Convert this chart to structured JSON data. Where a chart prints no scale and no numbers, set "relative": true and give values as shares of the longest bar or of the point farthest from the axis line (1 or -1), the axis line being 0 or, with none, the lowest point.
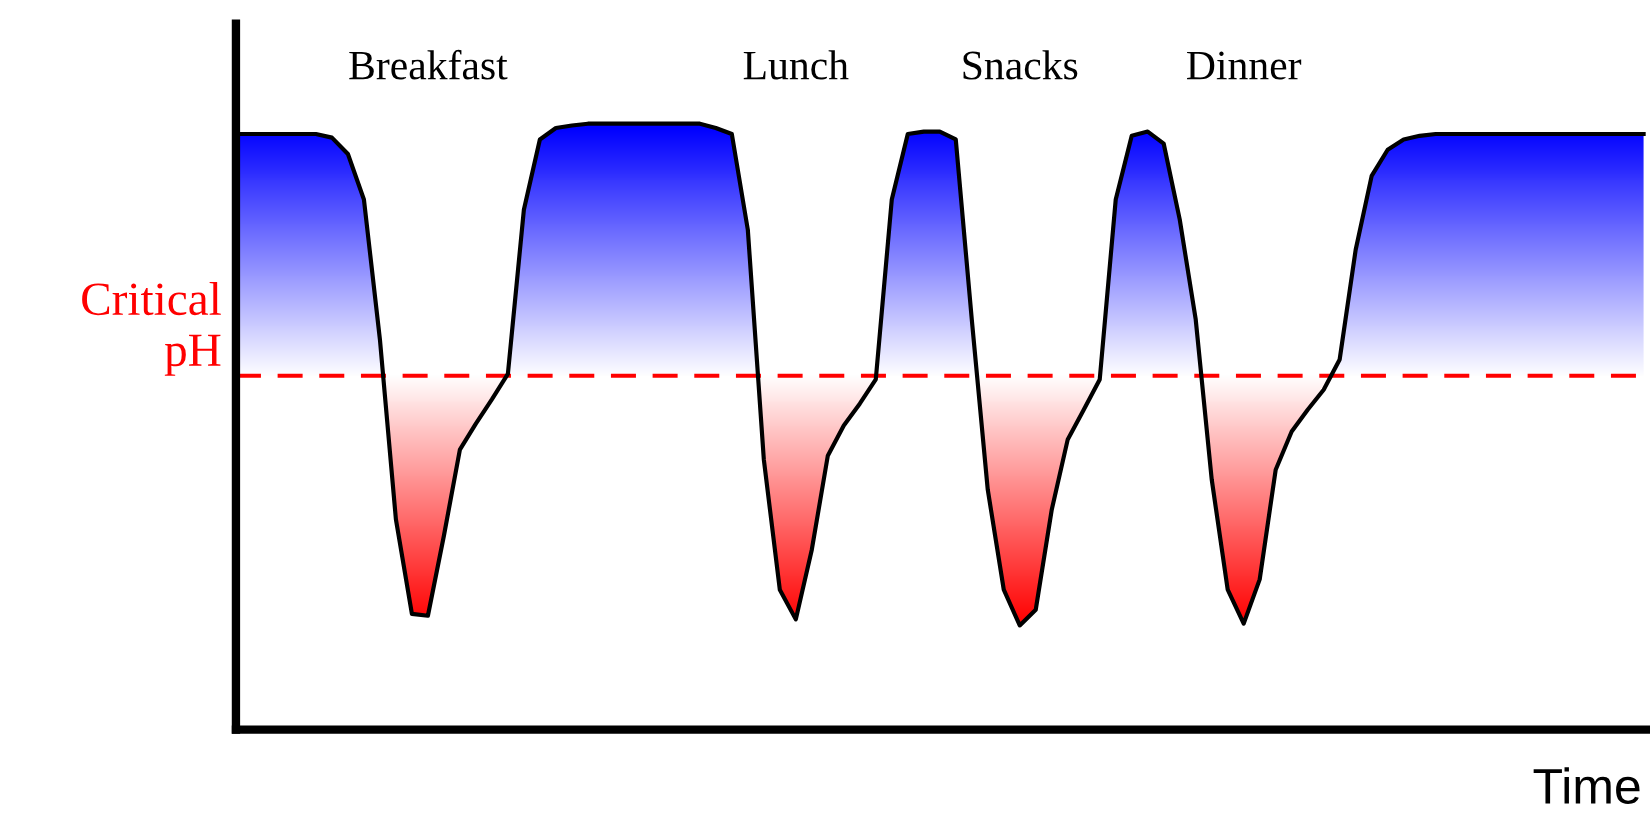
{
  "chart_data": {
    "type": "line",
    "relative": true,
    "xlabel": "Time",
    "categories": [
      null,
      null,
      null,
      null,
      null,
      null,
      null,
      null,
      null,
      null,
      null,
      null,
      null,
      null,
      null,
      null,
      null,
      null,
      null,
      null,
      null,
      null,
      null,
      null,
      null,
      null,
      null,
      null,
      null,
      null,
      null,
      null,
      null,
      null,
      null,
      null,
      null,
      null,
      null,
      null,
      null,
      null,
      null,
      null,
      null,
      null,
      null,
      null,
      null,
      null,
      null,
      null,
      null,
      null,
      null,
      null,
      null,
      null,
      null,
      null,
      null,
      null,
      null,
      null,
      null,
      null,
      null,
      null,
      null,
      null,
      null,
      null,
      null,
      null,
      null,
      null,
      null,
      null,
      null,
      null,
      null,
      null,
      null,
      null,
      null,
      null,
      null,
      null,
      null
    ],
    "series": [
      {
        "color": "#000000",
        "values": [
          0.983,
          0.983,
          0.983,
          0.983,
          0.983,
          0.983,
          0.977,
          0.95,
          0.875,
          0.644,
          0.347,
          0.191,
          0.188,
          0.32,
          0.462,
          0.505,
          0.545,
          0.587,
          0.858,
          0.974,
          0.993,
          0.997,
          1.0,
          1.0,
          1.0,
          1.0,
          1.0,
          1.0,
          1.0,
          1.0,
          0.993,
          0.983,
          0.825,
          0.446,
          0.231,
          0.182,
          0.297,
          0.452,
          0.502,
          0.538,
          0.578,
          0.875,
          0.983,
          0.987,
          0.987,
          0.974,
          0.677,
          0.396,
          0.231,
          0.172,
          0.198,
          0.363,
          0.479,
          0.528,
          0.578,
          0.875,
          0.98,
          0.987,
          0.967,
          0.842,
          0.677,
          0.413,
          0.231,
          0.175,
          0.248,
          0.429,
          0.492,
          0.528,
          0.561,
          0.611,
          0.792,
          0.914,
          0.957,
          0.974,
          0.98,
          0.983,
          0.983,
          0.983,
          0.983,
          0.983,
          0.983,
          0.983,
          0.983,
          0.983,
          0.983,
          0.983,
          0.983,
          0.983,
          0.983
        ]
      }
    ],
    "ref_lines": [
      {
        "axis": "y",
        "value": 0.584,
        "label": "Critical\npH",
        "color": "#ff0000",
        "line_style": "dashed"
      }
    ],
    "annotations": [
      "Breakfast",
      "Lunch",
      "Snacks",
      "Dinner"
    ]
  }
}
